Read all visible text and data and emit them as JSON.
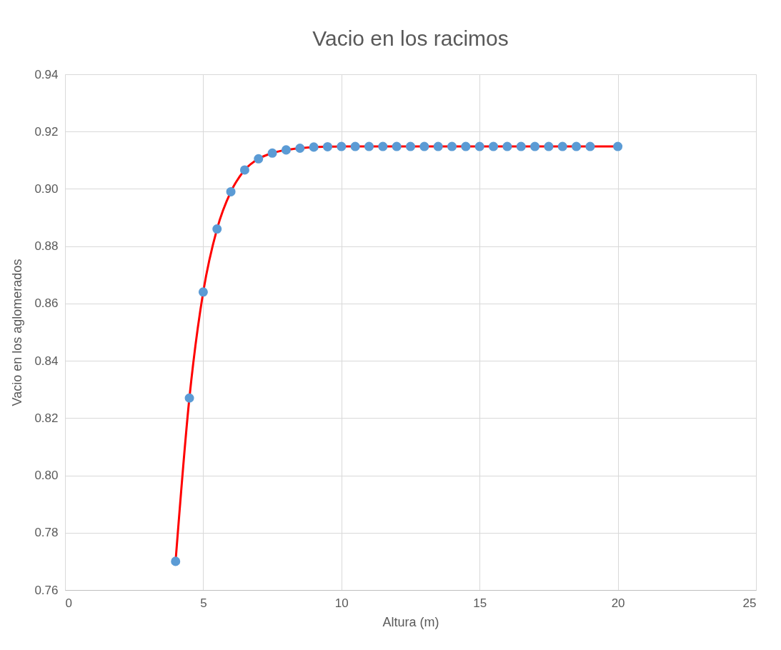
{
  "chart_data": {
    "type": "line",
    "title": "Vacio en los racimos",
    "xlabel": "Altura (m)",
    "ylabel": "Vacio en los aglomerados",
    "x": [
      4,
      4.5,
      5,
      5.5,
      6,
      6.5,
      7,
      7.5,
      8,
      8.5,
      9,
      9.5,
      10,
      10.5,
      11,
      11.5,
      12,
      12.5,
      13,
      13.5,
      14,
      14.5,
      15,
      15.5,
      16,
      16.5,
      17,
      17.5,
      18,
      18.5,
      19,
      20
    ],
    "series": [
      {
        "color": "#ff0000",
        "colors": [
          "#5b9bd5",
          "#5b9bd5",
          "#5b9bd5",
          "#5b9bd5",
          "#5b9bd5",
          "#5b9bd5",
          "#5b9bd5",
          "#5b9bd5",
          "#5b9bd5",
          "#5b9bd5",
          "#5b9bd5",
          "#5b9bd5",
          "#5b9bd5",
          "#5b9bd5",
          "#5b9bd5",
          "#5b9bd5",
          "#5b9bd5",
          "#5b9bd5",
          "#5b9bd5",
          "#5b9bd5",
          "#5b9bd5",
          "#5b9bd5",
          "#5b9bd5",
          "#5b9bd5",
          "#5b9bd5",
          "#5b9bd5",
          "#5b9bd5",
          "#5b9bd5",
          "#5b9bd5",
          "#5b9bd5",
          "#5b9bd5",
          "#5b9bd5"
        ],
        "values": [
          0.77,
          0.827,
          0.864,
          0.886,
          0.899,
          0.9066,
          0.9105,
          0.9125,
          0.9136,
          0.9142,
          0.9146,
          0.9147,
          0.9148,
          0.9148,
          0.9148,
          0.9148,
          0.9148,
          0.9148,
          0.9148,
          0.9148,
          0.9148,
          0.9148,
          0.9148,
          0.9148,
          0.9148,
          0.9148,
          0.9148,
          0.9148,
          0.9148,
          0.9148,
          0.9148,
          0.9148
        ]
      }
    ],
    "xlim": [
      0,
      25
    ],
    "xticks": [
      0,
      5,
      10,
      15,
      20,
      25
    ],
    "ylim": [
      0.76,
      0.94
    ],
    "yticks": [
      0.76,
      0.78,
      {
        "value": 0.8,
        "label": "0.80"
      },
      0.82,
      0.84,
      0.86,
      0.88,
      {
        "value": 0.9,
        "label": "0.90"
      },
      0.92,
      0.94
    ],
    "grid": true,
    "marker": "circle",
    "line_style": "solid"
  }
}
